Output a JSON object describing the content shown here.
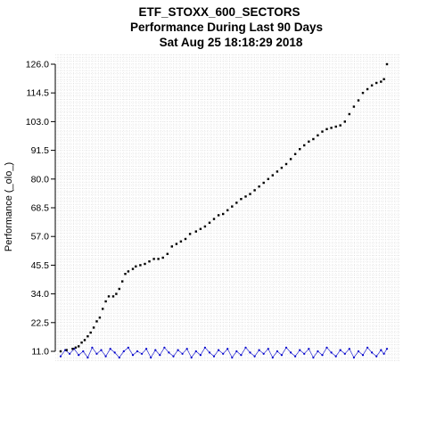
{
  "chart_data": {
    "type": "scatter",
    "title": [
      "ETF_STOXX_600_SECTORS",
      "Performance During Last 90 Days",
      "Sat Aug 25 18:18:29 2018"
    ],
    "xlabel": "",
    "ylabel": "Performance (_olo_)",
    "y_ticks": [
      11.0,
      22.5,
      34.0,
      45.5,
      57.0,
      68.5,
      80.0,
      91.5,
      103.0,
      114.5,
      126.0
    ],
    "y_tick_labels": [
      "11.0",
      "22.5",
      "34.0",
      "45.5",
      "57.0",
      "68.5",
      "80.0",
      "91.5",
      "103.0",
      "114.5",
      "126.0"
    ],
    "ylim": [
      11.0,
      126.0
    ],
    "grid": true,
    "colors": {
      "grid": "#d3d3d3",
      "axis": "#000000",
      "primary_series": "#000000",
      "secondary_series": "#0000cc",
      "background": "#ffffff"
    },
    "series": [
      {
        "color": "#000000",
        "points": [
          [
            0,
            11.0
          ],
          [
            4,
            11.5
          ],
          [
            8,
            12.0
          ],
          [
            10,
            12.5
          ],
          [
            12,
            13.0
          ],
          [
            14,
            14.5
          ],
          [
            16,
            15.5
          ],
          [
            18,
            17.0
          ],
          [
            20,
            18.5
          ],
          [
            22,
            20.5
          ],
          [
            24,
            23.0
          ],
          [
            26,
            24.5
          ],
          [
            28,
            28.0
          ],
          [
            30,
            31.0
          ],
          [
            32,
            33.0
          ],
          [
            35,
            33.0
          ],
          [
            37,
            34.0
          ],
          [
            39,
            36.0
          ],
          [
            41,
            39.0
          ],
          [
            43,
            42.0
          ],
          [
            45,
            43.0
          ],
          [
            48,
            44.0
          ],
          [
            50,
            45.0
          ],
          [
            53,
            45.5
          ],
          [
            56,
            46.0
          ],
          [
            59,
            47.0
          ],
          [
            62,
            48.0
          ],
          [
            65,
            48.0
          ],
          [
            68,
            48.5
          ],
          [
            71,
            50.0
          ],
          [
            74,
            53.0
          ],
          [
            77,
            54.0
          ],
          [
            80,
            55.0
          ],
          [
            83,
            56.0
          ],
          [
            86,
            58.0
          ],
          [
            90,
            59.0
          ],
          [
            93,
            60.0
          ],
          [
            96,
            61.0
          ],
          [
            99,
            62.5
          ],
          [
            102,
            64.0
          ],
          [
            105,
            65.5
          ],
          [
            108,
            66.0
          ],
          [
            111,
            67.5
          ],
          [
            114,
            69.0
          ],
          [
            117,
            70.5
          ],
          [
            120,
            72.0
          ],
          [
            123,
            73.0
          ],
          [
            126,
            74.0
          ],
          [
            129,
            75.5
          ],
          [
            132,
            77.0
          ],
          [
            135,
            78.5
          ],
          [
            138,
            80.0
          ],
          [
            141,
            81.5
          ],
          [
            144,
            83.0
          ],
          [
            147,
            84.5
          ],
          [
            150,
            86.0
          ],
          [
            153,
            88.0
          ],
          [
            156,
            90.0
          ],
          [
            159,
            92.0
          ],
          [
            162,
            93.5
          ],
          [
            165,
            95.0
          ],
          [
            168,
            96.0
          ],
          [
            171,
            97.5
          ],
          [
            174,
            99.0
          ],
          [
            177,
            100.0
          ],
          [
            180,
            100.5
          ],
          [
            183,
            101.0
          ],
          [
            186,
            101.5
          ],
          [
            189,
            103.0
          ],
          [
            192,
            106.0
          ],
          [
            195,
            109.0
          ],
          [
            198,
            111.5
          ],
          [
            201,
            114.5
          ],
          [
            204,
            116.0
          ],
          [
            207,
            117.5
          ],
          [
            210,
            118.5
          ],
          [
            213,
            119.0
          ],
          [
            215,
            120.0
          ],
          [
            217,
            126.0
          ]
        ]
      },
      {
        "color": "#0000cc",
        "points": [
          [
            0,
            9.0
          ],
          [
            3,
            11.5
          ],
          [
            6,
            10.0
          ],
          [
            9,
            12.0
          ],
          [
            12,
            9.5
          ],
          [
            15,
            11.0
          ],
          [
            18,
            8.5
          ],
          [
            21,
            12.5
          ],
          [
            24,
            10.0
          ],
          [
            27,
            11.5
          ],
          [
            30,
            9.0
          ],
          [
            33,
            12.0
          ],
          [
            36,
            10.5
          ],
          [
            39,
            8.5
          ],
          [
            42,
            11.0
          ],
          [
            45,
            12.5
          ],
          [
            48,
            9.5
          ],
          [
            51,
            11.0
          ],
          [
            54,
            10.0
          ],
          [
            57,
            12.0
          ],
          [
            60,
            8.5
          ],
          [
            63,
            11.5
          ],
          [
            66,
            9.5
          ],
          [
            69,
            12.5
          ],
          [
            72,
            10.5
          ],
          [
            75,
            9.0
          ],
          [
            78,
            11.5
          ],
          [
            81,
            10.0
          ],
          [
            84,
            12.0
          ],
          [
            87,
            8.5
          ],
          [
            90,
            11.0
          ],
          [
            93,
            9.5
          ],
          [
            96,
            12.5
          ],
          [
            99,
            10.5
          ],
          [
            102,
            9.0
          ],
          [
            105,
            11.5
          ],
          [
            108,
            10.0
          ],
          [
            111,
            12.0
          ],
          [
            114,
            8.5
          ],
          [
            117,
            11.0
          ],
          [
            120,
            9.5
          ],
          [
            123,
            12.5
          ],
          [
            126,
            10.5
          ],
          [
            129,
            9.0
          ],
          [
            132,
            11.5
          ],
          [
            135,
            10.0
          ],
          [
            138,
            12.0
          ],
          [
            141,
            8.5
          ],
          [
            144,
            11.0
          ],
          [
            147,
            9.5
          ],
          [
            150,
            12.5
          ],
          [
            153,
            10.5
          ],
          [
            156,
            9.0
          ],
          [
            159,
            11.5
          ],
          [
            162,
            10.0
          ],
          [
            165,
            12.0
          ],
          [
            168,
            8.5
          ],
          [
            171,
            11.0
          ],
          [
            174,
            9.5
          ],
          [
            177,
            12.5
          ],
          [
            180,
            10.5
          ],
          [
            183,
            9.0
          ],
          [
            186,
            11.5
          ],
          [
            189,
            10.0
          ],
          [
            192,
            12.0
          ],
          [
            195,
            8.5
          ],
          [
            198,
            11.0
          ],
          [
            201,
            9.5
          ],
          [
            204,
            12.5
          ],
          [
            207,
            10.5
          ],
          [
            210,
            9.0
          ],
          [
            213,
            11.5
          ],
          [
            215,
            10.0
          ],
          [
            217,
            12.0
          ]
        ]
      }
    ]
  }
}
